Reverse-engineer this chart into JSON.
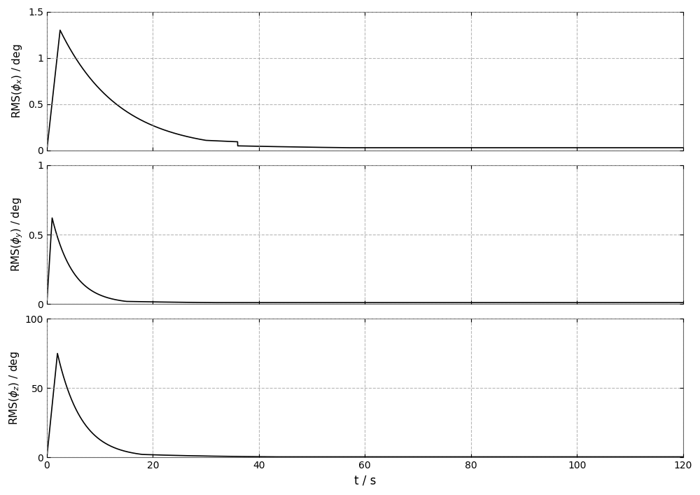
{
  "figsize": [
    10.0,
    7.07
  ],
  "dpi": 100,
  "xlabel": "t / s",
  "xlim": [
    0,
    120
  ],
  "xticks": [
    0,
    20,
    40,
    60,
    80,
    100,
    120
  ],
  "panels": [
    {
      "ylabel": "RMS($\\phi_x$) / deg",
      "ylim": [
        0,
        1.5
      ],
      "yticks": [
        0,
        0.5,
        1.0,
        1.5
      ],
      "peak": 1.3,
      "peak_t": 2.5,
      "decay_fast": 0.09,
      "decay_slow": 0.025,
      "t_transition": 30,
      "drop_t": 36,
      "drop_to": 0.05,
      "final": 0.03
    },
    {
      "ylabel": "RMS($\\phi_y$) / deg",
      "ylim": [
        0,
        1.0
      ],
      "yticks": [
        0,
        0.5,
        1.0
      ],
      "peak": 0.62,
      "peak_t": 1.0,
      "decay_fast": 0.25,
      "decay_slow": 0.04,
      "t_transition": 15,
      "drop_t": null,
      "drop_to": null,
      "final": 0.01
    },
    {
      "ylabel": "RMS($\\phi_z$) / deg",
      "ylim": [
        0,
        100
      ],
      "yticks": [
        0,
        50,
        100
      ],
      "peak": 75,
      "peak_t": 2.0,
      "decay_fast": 0.22,
      "decay_slow": 0.06,
      "t_transition": 18,
      "drop_t": null,
      "drop_to": null,
      "final": 0.5
    }
  ],
  "line_color": "#000000",
  "line_width": 1.2,
  "grid_color": "#999999",
  "grid_style": "--",
  "grid_alpha": 0.7,
  "bg_color": "#ffffff",
  "spine_color": "#666666"
}
